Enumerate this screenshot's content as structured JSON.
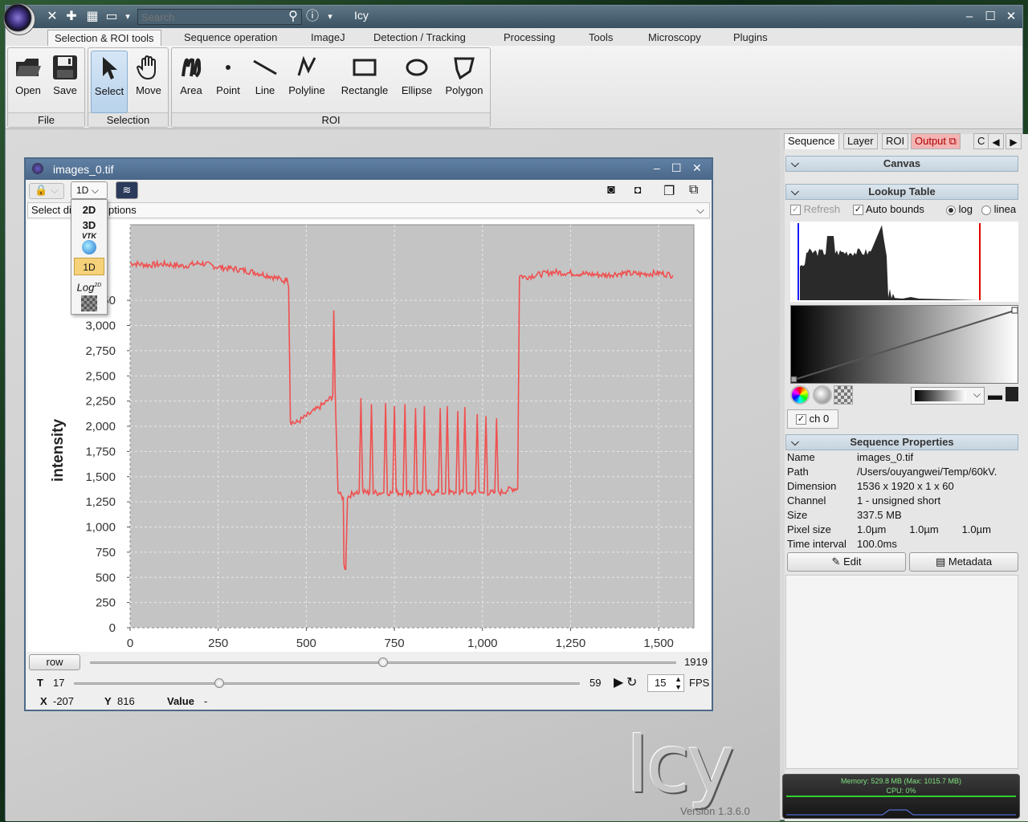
{
  "app": {
    "title": "Icy",
    "search_placeholder": "Search",
    "version": "Version 1.3.6.0",
    "big_logo_text": "Icy"
  },
  "menu_tabs": [
    "Selection & ROI tools",
    "Sequence operation",
    "ImageJ",
    "Detection / Tracking",
    "Processing",
    "Tools",
    "Microscopy",
    "Plugins"
  ],
  "ribbon": {
    "file_group": {
      "label": "File",
      "open": "Open",
      "save": "Save"
    },
    "selection_group": {
      "label": "Selection",
      "select": "Select",
      "move": "Move"
    },
    "roi_group": {
      "label": "ROI",
      "area": "Area",
      "point": "Point",
      "line": "Line",
      "polyline": "Polyline",
      "rectangle": "Rectangle",
      "ellipse": "Ellipse",
      "polygon": "Polygon"
    }
  },
  "image_window": {
    "title": "images_0.tif",
    "viewer_mode": "1D",
    "display_options_prefix": "Select di",
    "display_options_suffix": "ptions",
    "row_button": "row",
    "row_max": "1919",
    "row_value_fraction": 0.5,
    "t_label": "T",
    "t_value": "17",
    "t_max": "59",
    "t_fraction": 0.288,
    "fps_value": "15",
    "fps_label": "FPS",
    "x_label": "X",
    "x_value": "-207",
    "y_label": "Y",
    "y_value": "816",
    "value_label": "Value",
    "value_value": "-"
  },
  "viewer_dropdown": [
    "2D",
    "3D",
    "VTK",
    "1D",
    "Log",
    "2D"
  ],
  "chart_data": {
    "type": "line",
    "title": "",
    "xlabel": "",
    "ylabel": "intensity",
    "xlim": [
      0,
      1600
    ],
    "ylim": [
      0,
      4000
    ],
    "x_ticks": [
      "0",
      "250",
      "500",
      "750",
      "1,000",
      "1,250",
      "1,500"
    ],
    "y_ticks": [
      "0",
      "250",
      "500",
      "750",
      "1,000",
      "1,250",
      "1,500",
      "1,750",
      "2,000",
      "2,250",
      "2,500",
      "2,750",
      "3,000",
      "3,250"
    ],
    "grid": true,
    "series": [
      {
        "color": "#f05050",
        "points": [
          [
            0,
            3620
          ],
          [
            50,
            3600
          ],
          [
            100,
            3610
          ],
          [
            150,
            3590
          ],
          [
            200,
            3620
          ],
          [
            250,
            3580
          ],
          [
            300,
            3560
          ],
          [
            350,
            3530
          ],
          [
            400,
            3490
          ],
          [
            440,
            3440
          ],
          [
            445,
            3500
          ],
          [
            450,
            3380
          ],
          [
            455,
            2050
          ],
          [
            470,
            2030
          ],
          [
            500,
            2100
          ],
          [
            530,
            2170
          ],
          [
            560,
            2250
          ],
          [
            575,
            2300
          ],
          [
            578,
            3150
          ],
          [
            582,
            2320
          ],
          [
            590,
            1350
          ],
          [
            600,
            1300
          ],
          [
            605,
            1300
          ],
          [
            607,
            620
          ],
          [
            612,
            580
          ],
          [
            617,
            1300
          ],
          [
            640,
            1350
          ],
          [
            650,
            1340
          ],
          [
            655,
            2280
          ],
          [
            660,
            1350
          ],
          [
            680,
            1340
          ],
          [
            685,
            2220
          ],
          [
            690,
            1340
          ],
          [
            720,
            1340
          ],
          [
            725,
            2230
          ],
          [
            730,
            1340
          ],
          [
            745,
            1340
          ],
          [
            750,
            2200
          ],
          [
            755,
            1340
          ],
          [
            775,
            1340
          ],
          [
            780,
            2220
          ],
          [
            785,
            1340
          ],
          [
            805,
            1340
          ],
          [
            810,
            2180
          ],
          [
            815,
            1340
          ],
          [
            830,
            1340
          ],
          [
            835,
            2200
          ],
          [
            840,
            1340
          ],
          [
            875,
            1340
          ],
          [
            880,
            2180
          ],
          [
            885,
            1340
          ],
          [
            895,
            1340
          ],
          [
            900,
            2200
          ],
          [
            905,
            1340
          ],
          [
            925,
            1340
          ],
          [
            930,
            2150
          ],
          [
            935,
            1340
          ],
          [
            945,
            1340
          ],
          [
            950,
            2190
          ],
          [
            955,
            1340
          ],
          [
            980,
            1340
          ],
          [
            985,
            2120
          ],
          [
            990,
            1340
          ],
          [
            1005,
            1340
          ],
          [
            1010,
            2100
          ],
          [
            1015,
            1340
          ],
          [
            1035,
            1340
          ],
          [
            1040,
            2080
          ],
          [
            1045,
            1340
          ],
          [
            1060,
            1350
          ],
          [
            1080,
            1380
          ],
          [
            1100,
            1380
          ],
          [
            1105,
            3500
          ],
          [
            1120,
            3480
          ],
          [
            1150,
            3500
          ],
          [
            1200,
            3530
          ],
          [
            1250,
            3520
          ],
          [
            1300,
            3510
          ],
          [
            1350,
            3500
          ],
          [
            1400,
            3520
          ],
          [
            1450,
            3510
          ],
          [
            1500,
            3520
          ],
          [
            1540,
            3500
          ]
        ]
      }
    ]
  },
  "right_panel": {
    "tabs": [
      "Sequence",
      "Layer",
      "ROI",
      "Output",
      "C"
    ],
    "canvas_header": "Canvas",
    "lut_header": "Lookup Table",
    "refresh": "Refresh",
    "auto_bounds": "Auto bounds",
    "log": "log",
    "linear": "linea",
    "channel": "ch 0",
    "seq_props_header": "Sequence Properties",
    "properties": [
      {
        "key": "Name",
        "value": "images_0.tif"
      },
      {
        "key": "Path",
        "value": "/Users/ouyangwei/Temp/60kV."
      },
      {
        "key": "Dimension",
        "value": "1536 x 1920 x 1 x 60"
      },
      {
        "key": "Channel",
        "value": "1 - unsigned short"
      },
      {
        "key": "Size",
        "value": "337.5 MB"
      },
      {
        "key": "Pixel size",
        "value": "1.0µm        1.0µm        1.0µm"
      },
      {
        "key": "Time interval",
        "value": "100.0ms"
      }
    ],
    "edit_button": "Edit",
    "metadata_button": "Metadata",
    "memory": "Memory: 529.8 MB  (Max: 1015.7 MB)",
    "cpu": "CPU: 0%"
  }
}
